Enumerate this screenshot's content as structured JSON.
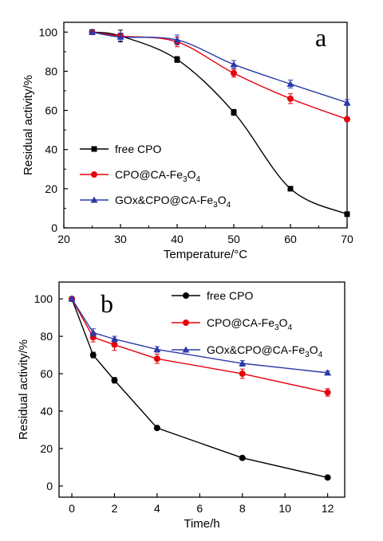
{
  "chart_data": [
    {
      "type": "line",
      "panel_label": "a",
      "xlabel": "Temperature/°C",
      "ylabel": "Residual activity/%",
      "xlim": [
        20,
        70
      ],
      "ylim": [
        0,
        105
      ],
      "xticks": [
        20,
        30,
        40,
        50,
        60,
        70
      ],
      "yticks": [
        0,
        20,
        40,
        60,
        80,
        100
      ],
      "grid": false,
      "legend_position": "bottom-left",
      "series": [
        {
          "name": "free CPO",
          "color": "#000000",
          "marker": "square",
          "x": [
            25,
            30,
            40,
            50,
            60,
            70
          ],
          "values": [
            100,
            98,
            86,
            59,
            20,
            7
          ],
          "errors": [
            1,
            3,
            1.5,
            1.5,
            1,
            0.5
          ]
        },
        {
          "name": "CPO@CA-Fe3O4",
          "color": "#e8000b",
          "marker": "circle",
          "x": [
            25,
            30,
            40,
            50,
            60,
            70
          ],
          "values": [
            100,
            98,
            95,
            79,
            66,
            55.5
          ],
          "errors": [
            1,
            1.5,
            2.5,
            2,
            2.5,
            1
          ]
        },
        {
          "name": "GOx&CPO@CA-Fe3O4",
          "color": "#2b3aa8",
          "marker": "triangle",
          "x": [
            25,
            30,
            40,
            50,
            60,
            70
          ],
          "values": [
            100,
            97.5,
            96,
            83.5,
            73.5,
            64
          ],
          "errors": [
            1,
            2,
            2.5,
            2,
            2,
            1.5
          ]
        }
      ]
    },
    {
      "type": "line",
      "panel_label": "b",
      "xlabel": "Time/h",
      "ylabel": "Residual activity/%",
      "xlim": [
        -0.6,
        12.8
      ],
      "ylim": [
        -6,
        109
      ],
      "xticks": [
        0,
        2,
        4,
        6,
        8,
        10,
        12
      ],
      "yticks": [
        0,
        20,
        40,
        60,
        80,
        100
      ],
      "grid": false,
      "legend_position": "top-right",
      "series": [
        {
          "name": "free CPO",
          "color": "#000000",
          "marker": "circle",
          "x": [
            0,
            1,
            2,
            4,
            8,
            12
          ],
          "values": [
            100,
            70,
            56.5,
            31,
            15,
            4.5
          ],
          "errors": [
            1,
            1.5,
            1.5,
            0.8,
            0.8,
            0.5
          ]
        },
        {
          "name": "CPO@CA-Fe3O4",
          "color": "#e8000b",
          "marker": "circle",
          "x": [
            0,
            1,
            2,
            4,
            8,
            12
          ],
          "values": [
            100,
            79.5,
            75.5,
            68,
            60,
            50
          ],
          "errors": [
            1,
            2.5,
            3,
            2.5,
            2.5,
            2
          ]
        },
        {
          "name": "GOx&CPO@CA-Fe3O4",
          "color": "#2b3aa8",
          "marker": "triangle",
          "x": [
            0,
            1,
            2,
            4,
            8,
            12
          ],
          "values": [
            100,
            82,
            78.5,
            73,
            65.5,
            60.5
          ],
          "errors": [
            1,
            2,
            1.5,
            1.5,
            1.5,
            1
          ]
        }
      ]
    }
  ]
}
